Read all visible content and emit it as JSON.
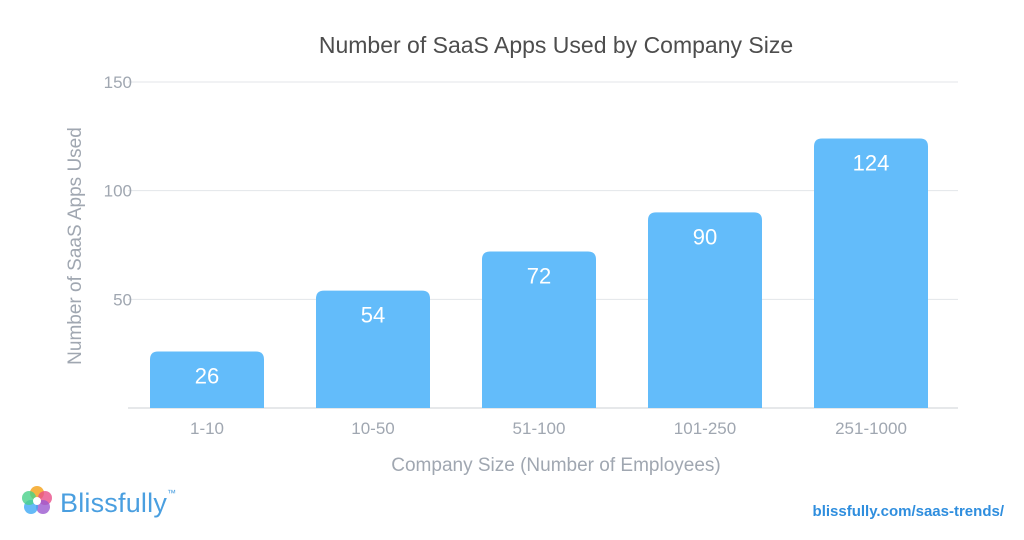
{
  "chart_data": {
    "type": "bar",
    "title": "Number of SaaS Apps Used by Company Size",
    "xlabel": "Company Size (Number of Employees)",
    "ylabel": "Number of SaaS Apps Used",
    "categories": [
      "1-10",
      "10-50",
      "51-100",
      "101-250",
      "251-1000"
    ],
    "values": [
      26,
      54,
      72,
      90,
      124
    ],
    "data_labels": [
      "26",
      "54",
      "72",
      "90",
      "124"
    ],
    "ylim": [
      0,
      150
    ],
    "yticks": [
      50,
      100,
      150
    ],
    "ytick_labels": [
      "50",
      "100",
      "150"
    ],
    "grid": true,
    "bar_color": "#63bcfa",
    "label_color": "#ffffff"
  },
  "branding": {
    "logo_text": "Blissfully",
    "trademark": "™",
    "logo_icon": "flower-logo-icon",
    "source_text": "blissfully.com/saas-trends/"
  }
}
